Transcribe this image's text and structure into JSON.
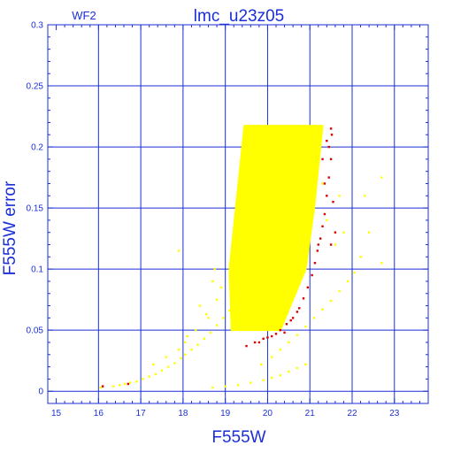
{
  "chart_data": {
    "type": "scatter",
    "title": "lmc_u23z05",
    "corner_label": "WF2",
    "xlabel": "F555W",
    "ylabel": "F555W error",
    "xlim": [
      14.8,
      23.8
    ],
    "ylim": [
      -0.01,
      0.3
    ],
    "xticks": [
      15,
      16,
      17,
      18,
      19,
      20,
      21,
      22,
      23
    ],
    "yticks": [
      0,
      0.05,
      0.1,
      0.15,
      0.2,
      0.25,
      0.3
    ],
    "ytick_labels": [
      "0",
      "0.05",
      "0.1",
      "0.15",
      "0.2",
      "0.25",
      "0.3"
    ],
    "grid": true,
    "colors": {
      "axes": "#1a2fd6",
      "primary_points": "#ffff00",
      "flagged_points": "#dd0000"
    },
    "series": [
      {
        "role": "yellow",
        "points": [
          [
            16.05,
            0.003
          ],
          [
            16.35,
            0.004
          ],
          [
            16.5,
            0.005
          ],
          [
            16.62,
            0.006
          ],
          [
            16.75,
            0.007
          ],
          [
            16.9,
            0.008
          ],
          [
            17.05,
            0.01
          ],
          [
            17.2,
            0.012
          ],
          [
            17.35,
            0.014
          ],
          [
            17.5,
            0.017
          ],
          [
            17.65,
            0.02
          ],
          [
            17.8,
            0.023
          ],
          [
            17.95,
            0.027
          ],
          [
            18.05,
            0.03
          ],
          [
            18.2,
            0.034
          ],
          [
            18.35,
            0.038
          ],
          [
            18.5,
            0.043
          ],
          [
            18.65,
            0.048
          ],
          [
            18.8,
            0.054
          ],
          [
            18.95,
            0.06
          ],
          [
            19.1,
            0.066
          ],
          [
            19.2,
            0.072
          ],
          [
            17.3,
            0.022
          ],
          [
            17.6,
            0.028
          ],
          [
            17.9,
            0.034
          ],
          [
            18.1,
            0.045
          ],
          [
            18.3,
            0.05
          ],
          [
            18.6,
            0.06
          ],
          [
            18.8,
            0.075
          ],
          [
            18.4,
            0.07
          ],
          [
            18.7,
            0.09
          ],
          [
            18.75,
            0.1
          ],
          [
            18.9,
            0.085
          ],
          [
            17.9,
            0.115
          ],
          [
            18.55,
            0.063
          ],
          [
            18.05,
            0.04
          ],
          [
            18.7,
            0.003
          ],
          [
            19.0,
            0.004
          ],
          [
            19.3,
            0.005
          ],
          [
            19.6,
            0.007
          ],
          [
            19.9,
            0.009
          ],
          [
            20.1,
            0.011
          ],
          [
            20.3,
            0.013
          ],
          [
            20.5,
            0.016
          ],
          [
            20.7,
            0.019
          ],
          [
            20.9,
            0.022
          ],
          [
            19.85,
            0.022
          ],
          [
            20.1,
            0.028
          ],
          [
            20.3,
            0.034
          ],
          [
            20.5,
            0.04
          ],
          [
            20.7,
            0.046
          ],
          [
            20.9,
            0.053
          ],
          [
            21.1,
            0.06
          ],
          [
            21.3,
            0.067
          ],
          [
            21.5,
            0.074
          ],
          [
            21.7,
            0.082
          ],
          [
            21.9,
            0.09
          ],
          [
            22.05,
            0.097
          ],
          [
            21.3,
            0.17
          ],
          [
            21.4,
            0.14
          ],
          [
            21.6,
            0.12
          ],
          [
            21.8,
            0.13
          ],
          [
            22.2,
            0.11
          ],
          [
            22.4,
            0.13
          ],
          [
            22.7,
            0.105
          ],
          [
            22.7,
            0.175
          ],
          [
            22.3,
            0.16
          ],
          [
            21.7,
            0.16
          ]
        ]
      },
      {
        "role": "red",
        "points": [
          [
            16.1,
            0.004
          ],
          [
            16.7,
            0.006
          ],
          [
            19.5,
            0.037
          ],
          [
            19.7,
            0.04
          ],
          [
            19.9,
            0.043
          ],
          [
            20.1,
            0.045
          ],
          [
            20.3,
            0.05
          ],
          [
            20.45,
            0.055
          ],
          [
            20.6,
            0.06
          ],
          [
            20.75,
            0.068
          ],
          [
            20.85,
            0.076
          ],
          [
            20.95,
            0.085
          ],
          [
            21.05,
            0.095
          ],
          [
            21.12,
            0.105
          ],
          [
            21.18,
            0.115
          ],
          [
            21.25,
            0.125
          ],
          [
            21.3,
            0.135
          ],
          [
            21.35,
            0.145
          ],
          [
            21.4,
            0.16
          ],
          [
            21.45,
            0.175
          ],
          [
            21.5,
            0.19
          ],
          [
            21.52,
            0.21
          ],
          [
            21.6,
            0.13
          ],
          [
            21.55,
            0.155
          ],
          [
            21.5,
            0.12
          ],
          [
            20.4,
            0.048
          ],
          [
            20.55,
            0.058
          ],
          [
            20.7,
            0.065
          ],
          [
            20.2,
            0.047
          ],
          [
            19.8,
            0.04
          ],
          [
            20.0,
            0.044
          ],
          [
            21.2,
            0.12
          ],
          [
            21.35,
            0.17
          ],
          [
            21.45,
            0.2
          ],
          [
            21.3,
            0.19
          ],
          [
            21.4,
            0.205
          ],
          [
            21.5,
            0.215
          ]
        ]
      }
    ],
    "dense_region": {
      "description_note": "",
      "x_left_at": [
        [
          0.05,
          19.15
        ],
        [
          0.1,
          19.1
        ],
        [
          0.15,
          19.25
        ],
        [
          0.2,
          19.4
        ],
        [
          0.217,
          19.45
        ]
      ],
      "x_right_at": [
        [
          0.05,
          20.3
        ],
        [
          0.1,
          20.9
        ],
        [
          0.15,
          21.1
        ],
        [
          0.2,
          21.25
        ],
        [
          0.217,
          21.3
        ]
      ],
      "y_cap": 0.217
    }
  }
}
